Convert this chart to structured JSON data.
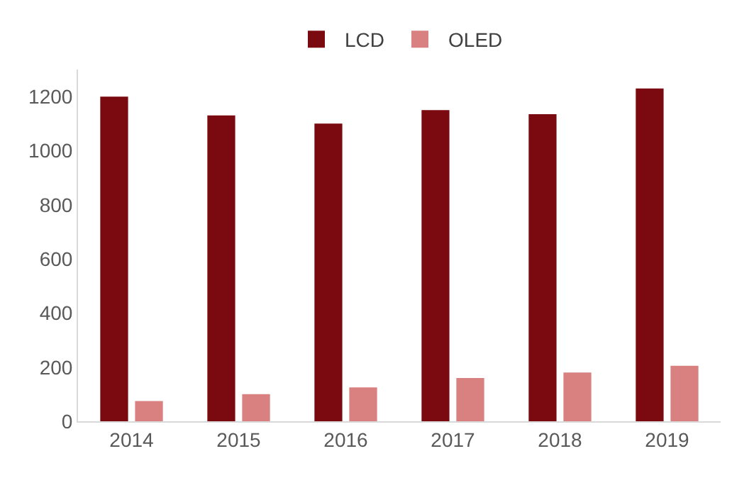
{
  "chart_data": {
    "type": "bar",
    "categories": [
      "2014",
      "2015",
      "2016",
      "2017",
      "2018",
      "2019"
    ],
    "series": [
      {
        "name": "LCD",
        "color": "#7b0a10",
        "values": [
          1200,
          1130,
          1100,
          1150,
          1135,
          1230
        ]
      },
      {
        "name": "OLED",
        "color": "#d98080",
        "values": [
          75,
          100,
          125,
          160,
          180,
          205
        ]
      }
    ],
    "ylim": [
      0,
      1300
    ],
    "yticks": [
      0,
      200,
      400,
      600,
      800,
      1000,
      1200
    ],
    "grid": false,
    "legend": "top"
  }
}
